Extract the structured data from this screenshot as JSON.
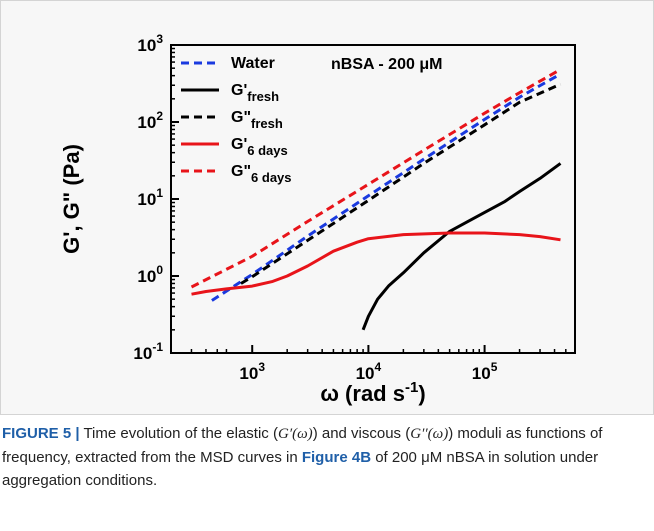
{
  "chart_data": {
    "type": "line",
    "annotation": "nBSA - 200 μM",
    "xlabel": "ω (rad s",
    "xlabel_sup": "-1",
    "xlabel_end": ")",
    "ylabel": "G', G\" (Pa)",
    "xscale": "log",
    "yscale": "log",
    "xlim": [
      200,
      600000
    ],
    "ylim": [
      0.1,
      1000
    ],
    "x_ticks": [
      {
        "value": 1000,
        "base": "10",
        "exp": "3"
      },
      {
        "value": 10000,
        "base": "10",
        "exp": "4"
      },
      {
        "value": 100000,
        "base": "10",
        "exp": "5"
      }
    ],
    "y_ticks": [
      {
        "value": 0.1,
        "base": "10",
        "exp": "-1"
      },
      {
        "value": 1,
        "base": "10",
        "exp": "0"
      },
      {
        "value": 10,
        "base": "10",
        "exp": "1"
      },
      {
        "value": 100,
        "base": "10",
        "exp": "2"
      },
      {
        "value": 1000,
        "base": "10",
        "exp": "3"
      }
    ],
    "legend_position": "top-left",
    "series": [
      {
        "name": "Water",
        "sub": "",
        "color": "#1a3adf",
        "dash": true,
        "x": [
          450,
          1000,
          3000,
          10000,
          30000,
          100000,
          200000,
          450000
        ],
        "y": [
          0.48,
          1.05,
          3.3,
          11,
          33,
          108,
          210,
          420
        ]
      },
      {
        "name": "G'",
        "sub": "fresh",
        "color": "#000000",
        "dash": false,
        "x": [
          9000,
          10000,
          12000,
          15000,
          20000,
          30000,
          50000,
          70000,
          100000,
          150000,
          200000,
          300000,
          450000
        ],
        "y": [
          0.2,
          0.3,
          0.5,
          0.75,
          1.1,
          2.0,
          3.8,
          5.0,
          6.7,
          9.3,
          12.5,
          18.5,
          29
        ]
      },
      {
        "name": "G\"",
        "sub": "fresh",
        "color": "#000000",
        "dash": true,
        "x": [
          800,
          1000,
          3000,
          10000,
          30000,
          100000,
          200000,
          450000
        ],
        "y": [
          0.8,
          0.98,
          2.9,
          9.6,
          29,
          92,
          180,
          310
        ]
      },
      {
        "name": "G'",
        "sub": "6 days",
        "color": "#e8141a",
        "dash": false,
        "x": [
          300,
          400,
          600,
          1000,
          1500,
          2000,
          3000,
          5000,
          8000,
          10000,
          20000,
          50000,
          100000,
          200000,
          300000,
          450000
        ],
        "y": [
          0.58,
          0.63,
          0.68,
          0.74,
          0.85,
          1.0,
          1.35,
          2.1,
          2.75,
          3.05,
          3.45,
          3.62,
          3.62,
          3.45,
          3.25,
          2.95
        ]
      },
      {
        "name": "G\"",
        "sub": "6 days",
        "color": "#e8141a",
        "dash": true,
        "x": [
          300,
          1000,
          3000,
          10000,
          30000,
          100000,
          200000,
          450000
        ],
        "y": [
          0.72,
          1.8,
          5.1,
          15.5,
          43,
          130,
          240,
          480
        ]
      }
    ]
  },
  "caption": {
    "figure_label": "FIGURE 5 |",
    "text_1": " Time evolution of the elastic (",
    "gp": "G′(ω)",
    "text_2": ") and viscous (",
    "gpp": "G′′(ω)",
    "text_3": ") moduli as functions of frequency, extracted from the MSD curves in ",
    "figure_ref": "Figure 4B",
    "text_4": " of 200 μM nBSA in solution under aggregation conditions."
  }
}
